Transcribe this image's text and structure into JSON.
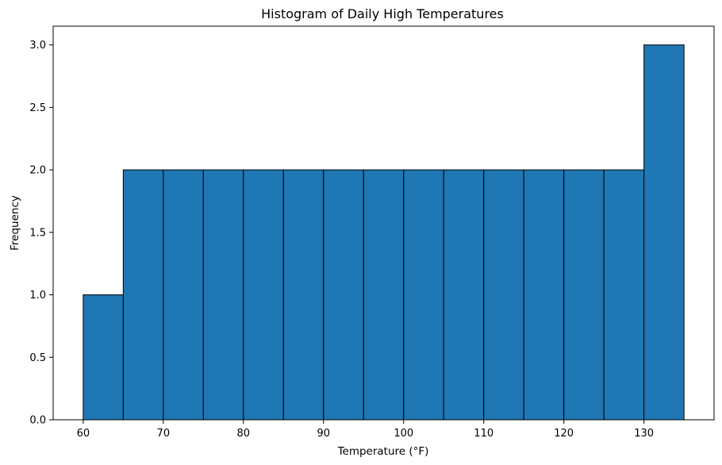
{
  "chart_data": {
    "type": "bar",
    "title": "Histogram of Daily High Temperatures",
    "xlabel": "Temperature (°F)",
    "ylabel": "Frequency",
    "bin_edges": [
      60,
      65,
      70,
      75,
      80,
      85,
      90,
      95,
      100,
      105,
      110,
      115,
      120,
      125,
      130,
      135
    ],
    "values": [
      1,
      2,
      2,
      2,
      2,
      2,
      2,
      2,
      2,
      2,
      2,
      2,
      2,
      2,
      3
    ],
    "xlim": [
      56.25,
      138.75
    ],
    "ylim": [
      0,
      3.15
    ],
    "xticks": [
      60,
      70,
      80,
      90,
      100,
      110,
      120,
      130
    ],
    "yticks": [
      "0.0",
      "0.5",
      "1.0",
      "1.5",
      "2.0",
      "2.5",
      "3.0"
    ],
    "grid": false,
    "bar_color": "#1f77b4",
    "edge_color": "#000000"
  }
}
